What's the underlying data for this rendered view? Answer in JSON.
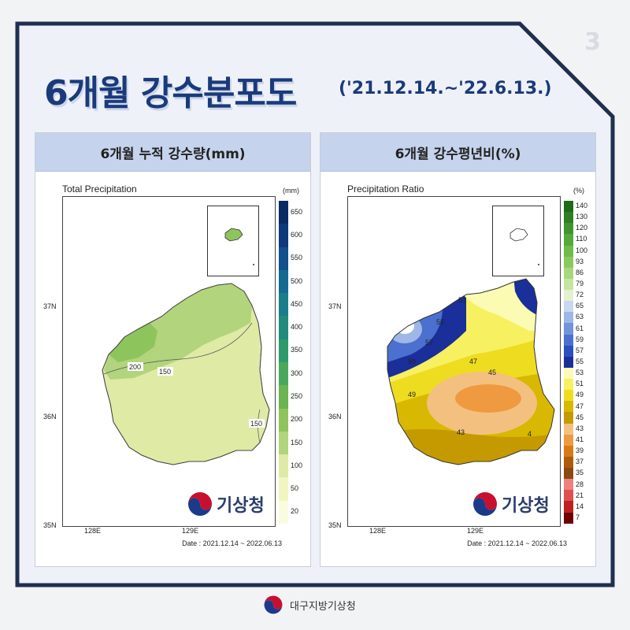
{
  "page_number": "3",
  "title": "6개월 강수분포도",
  "subtitle": "('21.12.14.~'22.6.13.)",
  "panels": [
    {
      "heading": "6개월 누적 강수량(mm)",
      "map_title": "Total Precipitation",
      "unit": "(mm)",
      "lat_labels": [
        "37N",
        "36N",
        "35N"
      ],
      "lon_labels": [
        "128E",
        "129E"
      ],
      "date": "Date : 2021.12.14 ~ 2022.06.13",
      "contour_labels": [
        "200",
        "150",
        "150"
      ],
      "colorbar": {
        "labels": [
          "650",
          "600",
          "550",
          "500",
          "450",
          "400",
          "350",
          "300",
          "250",
          "200",
          "150",
          "100",
          "50",
          "20"
        ],
        "colors": [
          "#0a2a66",
          "#0c3a7a",
          "#10508c",
          "#146a92",
          "#1a7d8a",
          "#1f8c7c",
          "#2e9a6c",
          "#4aa85c",
          "#6ab451",
          "#8ec45c",
          "#b2d47c",
          "#dfeaa5",
          "#f1f5c0",
          "#fafcdf"
        ]
      }
    },
    {
      "heading": "6개월 강수평년비(%)",
      "map_title": "Precipitation Ratio",
      "unit": "(%)",
      "lat_labels": [
        "37N",
        "36N",
        "35N"
      ],
      "lon_labels": [
        "128E",
        "129E"
      ],
      "date": "Date : 2021.12.14 ~ 2022.06.13",
      "contour_labels": [
        "51",
        "55",
        "57",
        "59",
        "49",
        "47",
        "45",
        "43",
        "4"
      ],
      "colorbar": {
        "labels": [
          "140",
          "130",
          "120",
          "110",
          "100",
          "93",
          "86",
          "79",
          "72",
          "65",
          "63",
          "61",
          "59",
          "57",
          "55",
          "53",
          "51",
          "49",
          "47",
          "45",
          "43",
          "41",
          "39",
          "37",
          "35",
          "28",
          "21",
          "14",
          "7"
        ],
        "colors": [
          "#1f6b1a",
          "#2f7f24",
          "#3f942e",
          "#55a83a",
          "#6eba4a",
          "#8bc95e",
          "#a9d77c",
          "#c6e5a0",
          "#e2f1cf",
          "#c9d8f0",
          "#9fb6e8",
          "#7393dc",
          "#4b70cf",
          "#2a4fbe",
          "#1a2f9a",
          "#fbfbb4",
          "#f7f060",
          "#eedc20",
          "#d8b800",
          "#c49a00",
          "#f4c080",
          "#ef9a40",
          "#d87a18",
          "#b05a0c",
          "#8a4a10",
          "#f08080",
          "#e05050",
          "#c02020",
          "#700000"
        ]
      }
    }
  ],
  "logo_text": "기상청",
  "footer_text": "대구지방기상청"
}
